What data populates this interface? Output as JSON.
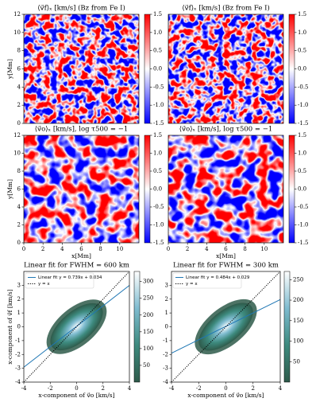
{
  "chart_data": [
    {
      "type": "heatmap",
      "title": "⟨v⃗f⟩ₓ [km/s] (Bz from Fe I)",
      "ylabel": "y[Mm]",
      "xlim": [
        0,
        12
      ],
      "ylim": [
        0,
        12
      ],
      "yticks": [
        0,
        2,
        4,
        6,
        8,
        10,
        12
      ],
      "colormap": [
        "#0000ff",
        "#ffffff",
        "#ff0000"
      ],
      "colorbar": {
        "lim": [
          -1.5,
          1.5
        ],
        "ticks": [
          -1.5,
          {
            "value": -1,
            "label": "-1.0"
          },
          -0.5,
          {
            "value": 0,
            "label": "0.0"
          },
          0.5,
          {
            "value": 1,
            "label": "1.0"
          },
          1.5
        ]
      }
    },
    {
      "type": "heatmap",
      "title": "⟨v⃗f⟩ₓ [km/s] (Bz from Fe I)",
      "xlim": [
        0,
        12
      ],
      "ylim": [
        0,
        12
      ],
      "colormap": [
        "#0000ff",
        "#ffffff",
        "#ff0000"
      ],
      "colorbar": {
        "lim": [
          -1.5,
          1.5
        ],
        "ticks": [
          -1.5,
          {
            "value": -1,
            "label": "-1.0"
          },
          -0.5,
          {
            "value": 0,
            "label": "0.0"
          },
          0.5,
          {
            "value": 1,
            "label": "1.0"
          },
          1.5
        ]
      }
    },
    {
      "type": "heatmap",
      "title": "⟨v⃗o⟩ₓ [km/s], log τ500 = −1",
      "ylabel": "y[Mm]",
      "xlabel": "x[Mm]",
      "xlim": [
        0,
        12
      ],
      "ylim": [
        0,
        12
      ],
      "xticks": [
        0,
        2,
        4,
        6,
        8,
        10
      ],
      "yticks": [
        0,
        2,
        4,
        6,
        8,
        10,
        12
      ],
      "colormap": [
        "#0000ff",
        "#ffffff",
        "#ff0000"
      ],
      "colorbar": {
        "lim": [
          -1.5,
          1.5
        ],
        "ticks": [
          -1.5,
          {
            "value": -1,
            "label": "-1.0"
          },
          -0.5,
          {
            "value": 0,
            "label": "0.0"
          },
          0.5,
          {
            "value": 1,
            "label": "1.0"
          },
          1.5
        ]
      }
    },
    {
      "type": "heatmap",
      "title": "⟨v⃗o⟩ₓ [km/s], log τ500 = −1",
      "xlabel": "x[Mm]",
      "xlim": [
        0,
        12
      ],
      "ylim": [
        0,
        12
      ],
      "xticks": [
        0,
        2,
        4,
        6,
        8,
        10
      ],
      "colormap": [
        "#0000ff",
        "#ffffff",
        "#ff0000"
      ],
      "colorbar": {
        "lim": [
          -1.5,
          1.5
        ],
        "ticks": [
          -1.5,
          {
            "value": -1,
            "label": "-1.0"
          },
          -0.5,
          {
            "value": 0,
            "label": "0.0"
          },
          0.5,
          {
            "value": 1,
            "label": "1.0"
          },
          1.5
        ]
      }
    },
    {
      "type": "hist2d",
      "title": "Linear fit for FWHM = 600 km",
      "xlabel": "x-component of v⃗o [km/s]",
      "ylabel": "x-component of v⃗f [km/s]",
      "xlim": [
        -4,
        4
      ],
      "ylim": [
        -4,
        4
      ],
      "xticks": [
        -4,
        -2,
        0,
        2,
        4
      ],
      "yticks": [
        -4,
        -3,
        -2,
        -1,
        0,
        1,
        2,
        3
      ],
      "colormap": [
        "#2e5a4a",
        "#3d8a7e",
        "#7fbcd0",
        "#ffffff"
      ],
      "colorbar": {
        "lim": [
          0,
          330
        ],
        "ticks": [
          50,
          100,
          150,
          200,
          250,
          300
        ]
      },
      "lines": [
        {
          "name": "Linear fit y = 0.739x + 0.034",
          "color": "#1f77b4",
          "slope": 0.739,
          "intercept": 0.034
        },
        {
          "name": "y = x",
          "color": "#000000",
          "dash": "dotted"
        }
      ]
    },
    {
      "type": "hist2d",
      "title": "Linear fit for FWHM = 300 km",
      "xlabel": "x-component of v⃗o [km/s]",
      "xlim": [
        -4,
        4
      ],
      "ylim": [
        -4,
        4
      ],
      "xticks": [
        -4,
        -2,
        0,
        2,
        4
      ],
      "yticks": [
        -4,
        -3,
        -2,
        -1,
        0,
        1,
        2,
        3
      ],
      "colormap": [
        "#2e5a4a",
        "#3d8a7e",
        "#7fbcd0",
        "#ffffff"
      ],
      "colorbar": {
        "lim": [
          0,
          270
        ],
        "ticks": [
          50,
          100,
          150,
          200,
          250
        ]
      },
      "lines": [
        {
          "name": "Linear fit y = 0.484x + 0.029",
          "color": "#1f77b4",
          "slope": 0.484,
          "intercept": 0.029
        },
        {
          "name": "y = x",
          "color": "#000000",
          "dash": "dotted"
        }
      ]
    }
  ]
}
